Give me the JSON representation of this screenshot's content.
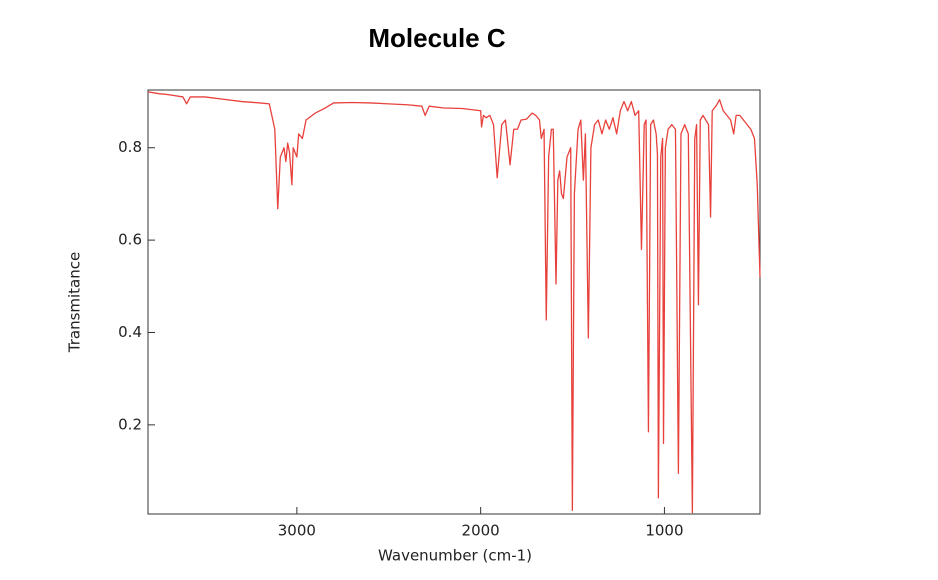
{
  "chart_data": {
    "type": "line",
    "title": "Molecule C",
    "x_label": "Wavenumber (cm-1)",
    "y_label": "Transmitance",
    "color": "#e8413c",
    "x": [
      3810,
      3750,
      3700,
      3620,
      3600,
      3580,
      3500,
      3400,
      3300,
      3200,
      3150,
      3120,
      3104,
      3090,
      3070,
      3060,
      3050,
      3040,
      3027,
      3020,
      3000,
      2990,
      2970,
      2950,
      2900,
      2850,
      2800,
      2700,
      2600,
      2500,
      2400,
      2320,
      2302,
      2280,
      2200,
      2100,
      2000,
      1995,
      1985,
      1970,
      1950,
      1930,
      1910,
      1885,
      1865,
      1840,
      1820,
      1800,
      1780,
      1750,
      1720,
      1700,
      1680,
      1670,
      1655,
      1643,
      1630,
      1615,
      1605,
      1590,
      1580,
      1570,
      1560,
      1550,
      1530,
      1510,
      1501,
      1490,
      1470,
      1455,
      1441,
      1430,
      1414,
      1400,
      1380,
      1360,
      1340,
      1320,
      1300,
      1280,
      1260,
      1240,
      1220,
      1200,
      1180,
      1160,
      1140,
      1125,
      1110,
      1100,
      1087,
      1075,
      1060,
      1045,
      1038,
      1033,
      1020,
      1010,
      1005,
      995,
      980,
      960,
      940,
      924,
      910,
      890,
      870,
      848,
      835,
      825,
      815,
      805,
      790,
      775,
      760,
      749,
      740,
      720,
      700,
      680,
      660,
      640,
      623,
      610,
      590,
      570,
      550,
      530,
      510,
      495,
      480
    ],
    "values": [
      0.921,
      0.917,
      0.915,
      0.91,
      0.895,
      0.91,
      0.91,
      0.905,
      0.9,
      0.897,
      0.895,
      0.84,
      0.668,
      0.78,
      0.8,
      0.77,
      0.81,
      0.79,
      0.72,
      0.8,
      0.78,
      0.83,
      0.82,
      0.86,
      0.875,
      0.885,
      0.897,
      0.898,
      0.897,
      0.895,
      0.893,
      0.89,
      0.87,
      0.89,
      0.886,
      0.885,
      0.88,
      0.845,
      0.87,
      0.865,
      0.87,
      0.85,
      0.735,
      0.85,
      0.86,
      0.763,
      0.84,
      0.84,
      0.86,
      0.862,
      0.875,
      0.87,
      0.86,
      0.82,
      0.84,
      0.427,
      0.78,
      0.84,
      0.84,
      0.505,
      0.73,
      0.75,
      0.7,
      0.69,
      0.78,
      0.8,
      0.015,
      0.7,
      0.84,
      0.86,
      0.73,
      0.83,
      0.388,
      0.8,
      0.85,
      0.86,
      0.83,
      0.86,
      0.84,
      0.865,
      0.83,
      0.88,
      0.9,
      0.88,
      0.9,
      0.87,
      0.88,
      0.58,
      0.85,
      0.86,
      0.185,
      0.85,
      0.86,
      0.83,
      0.785,
      0.042,
      0.78,
      0.82,
      0.16,
      0.8,
      0.84,
      0.85,
      0.84,
      0.095,
      0.83,
      0.85,
      0.83,
      0.01,
      0.82,
      0.85,
      0.46,
      0.86,
      0.87,
      0.86,
      0.85,
      0.65,
      0.88,
      0.89,
      0.904,
      0.88,
      0.87,
      0.86,
      0.83,
      0.87,
      0.87,
      0.86,
      0.85,
      0.84,
      0.82,
      0.72,
      0.52
    ],
    "xlim": [
      3810,
      480
    ],
    "xticks": [
      3000,
      2000,
      1000
    ],
    "ylim": [
      0.007,
      0.925
    ],
    "yticks": [
      0.2,
      0.4,
      0.6,
      0.8
    ]
  }
}
